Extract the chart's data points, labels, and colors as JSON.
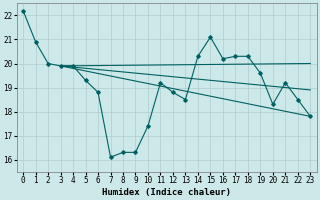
{
  "bg_color": "#cce8e8",
  "grid_color": "#b0cccc",
  "line_color": "#006060",
  "xlabel": "Humidex (Indice chaleur)",
  "xlabel_fontsize": 6.5,
  "tick_fontsize": 5.5,
  "xlim": [
    -0.5,
    23.5
  ],
  "ylim": [
    15.5,
    22.5
  ],
  "yticks": [
    16,
    17,
    18,
    19,
    20,
    21,
    22
  ],
  "xticks": [
    0,
    1,
    2,
    3,
    4,
    5,
    6,
    7,
    8,
    9,
    10,
    11,
    12,
    13,
    14,
    15,
    16,
    17,
    18,
    19,
    20,
    21,
    22,
    23
  ],
  "line1_x": [
    0,
    1,
    2,
    3,
    4,
    5,
    6,
    7,
    8,
    9,
    10,
    11,
    12,
    13,
    14,
    15,
    16,
    17,
    18,
    19,
    20,
    21,
    22,
    23
  ],
  "line1_y": [
    22.2,
    20.9,
    20.0,
    19.9,
    19.9,
    19.3,
    18.8,
    16.1,
    16.3,
    16.3,
    17.4,
    19.2,
    18.8,
    18.5,
    20.3,
    21.1,
    20.2,
    20.3,
    20.3,
    19.6,
    18.3,
    19.2,
    18.5,
    17.8
  ],
  "line2_x": [
    3,
    23
  ],
  "line2_y": [
    19.9,
    17.8
  ],
  "line3_x": [
    3,
    23
  ],
  "line3_y": [
    19.9,
    20.0
  ],
  "line4_x": [
    3,
    23
  ],
  "line4_y": [
    19.9,
    18.9
  ]
}
